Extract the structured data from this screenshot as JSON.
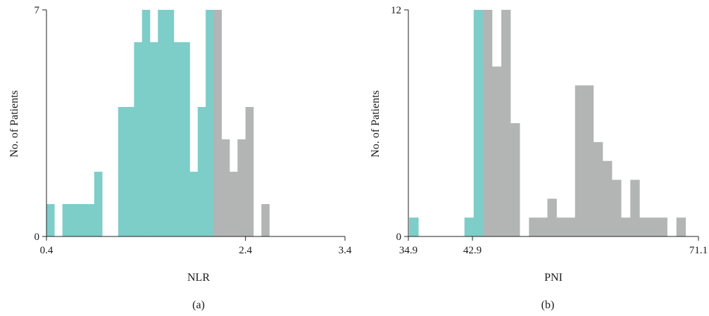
{
  "colors": {
    "below_cutoff": "#7dcdc9",
    "above_cutoff": "#b3b5b5",
    "axis": "#222222"
  },
  "chart_data": [
    {
      "type": "bar",
      "subtype": "histogram",
      "panel_label": "(a)",
      "xlabel": "NLR",
      "ylabel": "No. of Patients",
      "xlim": [
        0.4,
        3.4
      ],
      "ylim": [
        0,
        7
      ],
      "x_tick_labels": [
        "0.4",
        "2.4",
        "3.4"
      ],
      "y_tick_labels": [
        "0",
        "7"
      ],
      "cutoff": 2.4,
      "bin_edges": [
        0.4,
        0.48,
        0.56,
        0.64,
        0.72,
        0.8,
        0.88,
        0.96,
        1.04,
        1.12,
        1.2,
        1.28,
        1.36,
        1.44,
        1.52,
        1.6,
        1.68,
        1.76,
        1.84,
        1.92,
        2.0,
        2.08,
        2.16,
        2.24,
        2.32,
        2.4,
        2.48,
        2.56,
        2.64,
        2.72,
        2.8,
        2.88,
        2.96,
        3.04,
        3.12,
        3.2,
        3.28,
        3.36
      ],
      "series": [
        {
          "values": [
            1,
            0,
            1,
            1,
            1,
            1,
            2,
            0,
            0,
            4,
            4,
            6,
            7,
            6,
            7,
            7,
            6,
            6,
            2,
            4,
            7,
            0,
            0,
            0,
            0,
            0,
            0,
            0,
            0,
            0,
            0,
            0,
            0,
            0,
            0,
            0,
            0
          ]
        },
        {
          "values": [
            0,
            0,
            0,
            0,
            0,
            0,
            0,
            0,
            0,
            0,
            0,
            0,
            0,
            0,
            0,
            0,
            0,
            0,
            0,
            0,
            0,
            7,
            3,
            2,
            3,
            4,
            0,
            1,
            0,
            0,
            0,
            0,
            0,
            0,
            0,
            0,
            0
          ]
        }
      ]
    },
    {
      "type": "bar",
      "subtype": "histogram",
      "panel_label": "(b)",
      "xlabel": "PNI",
      "ylabel": "No. of Patients",
      "xlim": [
        34.9,
        71.1
      ],
      "ylim": [
        0,
        12
      ],
      "x_tick_labels": [
        "34.9",
        "42.9",
        "71.1"
      ],
      "y_tick_labels": [
        "0",
        "12"
      ],
      "cutoff": 42.9,
      "bin_edges": [
        35.0,
        36.15,
        37.3,
        38.45,
        39.6,
        40.75,
        41.9,
        43.05,
        44.2,
        45.35,
        46.5,
        47.65,
        48.8,
        49.95,
        51.1,
        52.25,
        53.4,
        54.55,
        55.7,
        56.85,
        58.0,
        59.15,
        60.3,
        61.45,
        62.6,
        63.75,
        64.9,
        66.05,
        67.2,
        68.35,
        69.5,
        70.65
      ],
      "series": [
        {
          "values": [
            1,
            0,
            0,
            0,
            0,
            0,
            1,
            12,
            0,
            0,
            0,
            0,
            0,
            0,
            0,
            0,
            0,
            0,
            0,
            0,
            0,
            0,
            0,
            0,
            0,
            0,
            0,
            0,
            0,
            0,
            0
          ]
        },
        {
          "values": [
            0,
            0,
            0,
            0,
            0,
            0,
            0,
            0,
            12,
            9,
            12,
            6,
            0,
            1,
            1,
            2,
            1,
            1,
            8,
            8,
            5,
            4,
            3,
            1,
            3,
            1,
            1,
            1,
            0,
            1,
            0
          ]
        }
      ]
    }
  ]
}
